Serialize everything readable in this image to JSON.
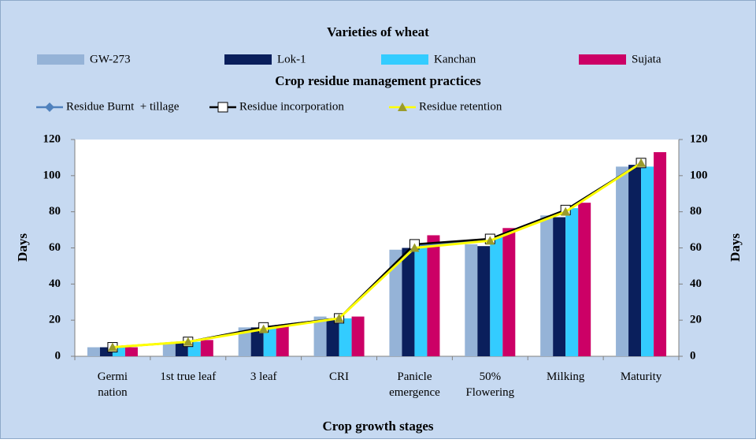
{
  "chart_data": {
    "type": "bar",
    "bar_legend_title": "Varieties of wheat",
    "line_legend_title": "Crop residue management practices",
    "x_label": "Crop growth stages",
    "y_label": "Days",
    "y2_label": "Days",
    "categories": [
      [
        "Germi",
        "nation"
      ],
      [
        "1st true leaf"
      ],
      [
        "3 leaf"
      ],
      [
        "CRI"
      ],
      [
        "Panicle",
        "emergence"
      ],
      [
        "50%",
        "Flowering"
      ],
      [
        "Milking"
      ],
      [
        "Maturity"
      ]
    ],
    "ylim": [
      0,
      120
    ],
    "yticks": [
      0,
      20,
      40,
      60,
      80,
      100,
      120
    ],
    "y2lim": [
      0,
      120
    ],
    "y2ticks": [
      0,
      20,
      40,
      60,
      80,
      100,
      120
    ],
    "series": [
      {
        "name": "GW-273",
        "type": "bar",
        "color": "#95b3d7",
        "values": [
          5,
          7,
          16,
          22,
          59,
          62,
          78,
          105
        ]
      },
      {
        "name": "Lok-1",
        "type": "bar",
        "color": "#0a1f5c",
        "values": [
          5,
          8,
          16,
          21,
          60,
          61,
          77,
          106
        ]
      },
      {
        "name": "Kanchan",
        "type": "bar",
        "color": "#33ccff",
        "values": [
          5,
          8,
          17,
          21,
          62,
          66,
          82,
          105
        ]
      },
      {
        "name": "Sujata",
        "type": "bar",
        "color": "#cc0066",
        "values": [
          5,
          9,
          17,
          22,
          67,
          71,
          85,
          113
        ]
      },
      {
        "name": "Residue Burnt  + tillage",
        "type": "line",
        "axis": "y2",
        "color": "#4f81bd",
        "marker": "diamond",
        "marker_color": "#4f81bd",
        "values": [
          5,
          8,
          16,
          21,
          61,
          65,
          81,
          107
        ]
      },
      {
        "name": "Residue incorporation",
        "type": "line",
        "axis": "y2",
        "color": "#000000",
        "marker": "square",
        "marker_color": "#ffffff",
        "values": [
          5,
          8,
          16,
          21,
          62,
          65,
          81,
          107
        ]
      },
      {
        "name": "Residue retention",
        "type": "line",
        "axis": "y2",
        "color": "#ffff00",
        "marker": "triangle",
        "marker_color": "#9b9b2b",
        "values": [
          5,
          8,
          15,
          21,
          60,
          64,
          80,
          107
        ]
      }
    ]
  }
}
